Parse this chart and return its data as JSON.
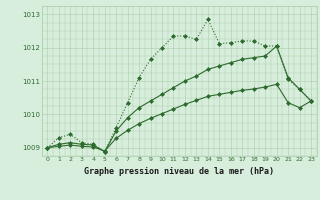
{
  "bg_color": "#d8eedd",
  "grid_color": "#aaccaa",
  "line_color": "#2d6a2d",
  "marker_color": "#2d6a2d",
  "xlabel": "Graphe pression niveau de la mer (hPa)",
  "ylim": [
    1008.75,
    1013.25
  ],
  "xlim": [
    -0.5,
    23.5
  ],
  "yticks": [
    1009,
    1010,
    1011,
    1012,
    1013
  ],
  "xticks": [
    0,
    1,
    2,
    3,
    4,
    5,
    6,
    7,
    8,
    9,
    10,
    11,
    12,
    13,
    14,
    15,
    16,
    17,
    18,
    19,
    20,
    21,
    22,
    23
  ],
  "series1_x": [
    0,
    1,
    2,
    3,
    4,
    5,
    6,
    7,
    8,
    9,
    10,
    11,
    12,
    13,
    14,
    15,
    16,
    17,
    18,
    19,
    20,
    21,
    22,
    23
  ],
  "series1_y": [
    1009.0,
    1009.3,
    1009.4,
    1009.15,
    1009.1,
    1008.88,
    1009.6,
    1010.35,
    1011.1,
    1011.65,
    1012.0,
    1012.35,
    1012.35,
    1012.25,
    1012.85,
    1012.12,
    1012.15,
    1012.2,
    1012.2,
    1012.05,
    1012.05,
    1011.05,
    1010.75,
    1010.4
  ],
  "series2_x": [
    0,
    1,
    2,
    3,
    4,
    5,
    6,
    7,
    8,
    9,
    10,
    11,
    12,
    13,
    14,
    15,
    16,
    17,
    18,
    19,
    20,
    21,
    22,
    23
  ],
  "series2_y": [
    1009.0,
    1009.1,
    1009.15,
    1009.1,
    1009.08,
    1008.88,
    1009.5,
    1009.9,
    1010.2,
    1010.4,
    1010.6,
    1010.8,
    1011.0,
    1011.15,
    1011.35,
    1011.45,
    1011.55,
    1011.65,
    1011.7,
    1011.75,
    1012.05,
    1011.1,
    1010.75,
    1010.4
  ],
  "series3_x": [
    0,
    1,
    2,
    3,
    4,
    5,
    6,
    7,
    8,
    9,
    10,
    11,
    12,
    13,
    14,
    15,
    16,
    17,
    18,
    19,
    20,
    21,
    22,
    23
  ],
  "series3_y": [
    1009.0,
    1009.04,
    1009.08,
    1009.04,
    1009.02,
    1008.9,
    1009.28,
    1009.52,
    1009.72,
    1009.88,
    1010.02,
    1010.16,
    1010.3,
    1010.42,
    1010.54,
    1010.6,
    1010.66,
    1010.72,
    1010.76,
    1010.82,
    1010.9,
    1010.35,
    1010.2,
    1010.4
  ]
}
